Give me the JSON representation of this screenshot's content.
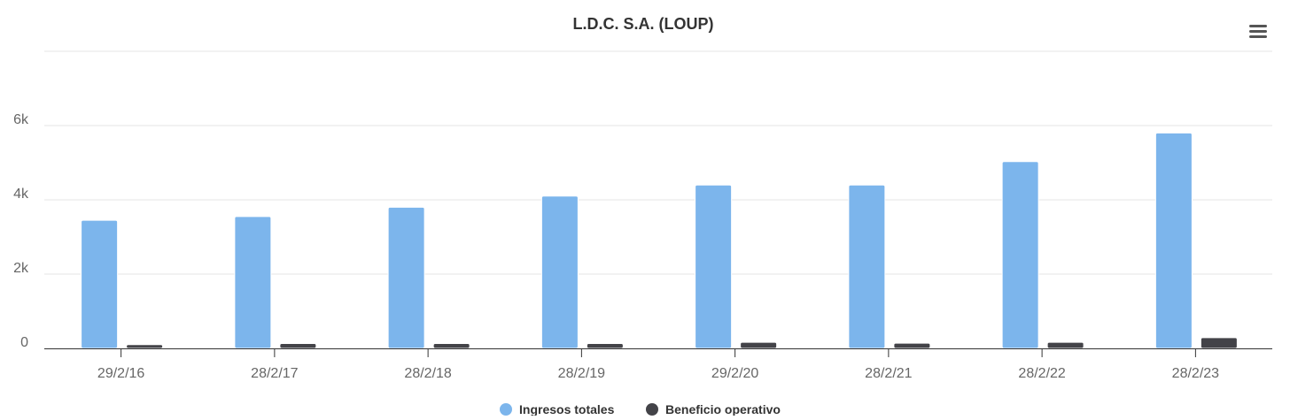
{
  "chart_data": {
    "type": "bar",
    "title": "L.D.C. S.A. (LOUP)",
    "xlabel": "",
    "ylabel": "",
    "categories": [
      "29/2/16",
      "28/2/17",
      "28/2/18",
      "28/2/19",
      "29/2/20",
      "28/2/21",
      "28/2/22",
      "28/2/23"
    ],
    "series": [
      {
        "name": "Ingresos totales",
        "color": "#7cb5ec",
        "values": [
          3450,
          3550,
          3800,
          4100,
          4400,
          4400,
          5030,
          5800
        ]
      },
      {
        "name": "Beneficio operativo",
        "color": "#434348",
        "values": [
          100,
          130,
          130,
          130,
          165,
          140,
          165,
          290
        ]
      }
    ],
    "ylim": [
      0,
      8000
    ],
    "yticks": [
      {
        "value": 0,
        "label": "0"
      },
      {
        "value": 2000,
        "label": "2k"
      },
      {
        "value": 4000,
        "label": "4k"
      },
      {
        "value": 6000,
        "label": "6k"
      }
    ],
    "grid": true,
    "legend_position": "bottom-center"
  },
  "menu_icon": "hamburger-menu-icon"
}
